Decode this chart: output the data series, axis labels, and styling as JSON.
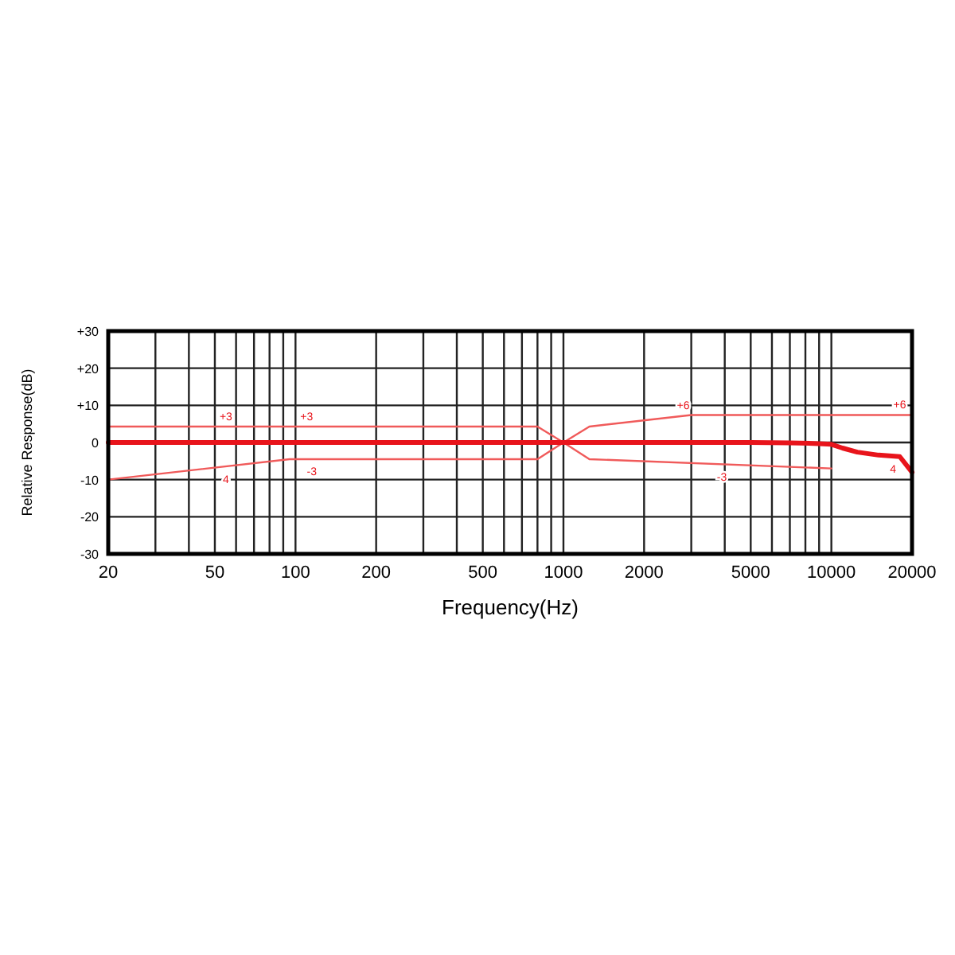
{
  "chart_data": {
    "type": "line",
    "xlabel": "Frequency(Hz)",
    "ylabel": "Relative Response(dB)",
    "log": "x",
    "grid": true,
    "marker": "none",
    "line_style": "solid",
    "xlim": [
      20,
      20000
    ],
    "ylim": [
      -30,
      30
    ],
    "xticks": [
      20,
      {
        "value": 30,
        "label": null
      },
      {
        "value": 40,
        "label": null
      },
      50,
      {
        "value": 60,
        "label": null
      },
      {
        "value": 70,
        "label": null
      },
      {
        "value": 80,
        "label": null
      },
      {
        "value": 90,
        "label": null
      },
      100,
      200,
      {
        "value": 300,
        "label": null
      },
      {
        "value": 400,
        "label": null
      },
      500,
      {
        "value": 600,
        "label": null
      },
      {
        "value": 700,
        "label": null
      },
      {
        "value": 800,
        "label": null
      },
      {
        "value": 900,
        "label": null
      },
      1000,
      2000,
      {
        "value": 3000,
        "label": null
      },
      {
        "value": 4000,
        "label": null
      },
      5000,
      {
        "value": 6000,
        "label": null
      },
      {
        "value": 7000,
        "label": null
      },
      {
        "value": 8000,
        "label": null
      },
      {
        "value": 9000,
        "label": null
      },
      10000,
      20000
    ],
    "yticks": [
      {
        "value": 30,
        "label": "+30"
      },
      {
        "value": 20,
        "label": "+20"
      },
      {
        "value": 10,
        "label": "+10"
      },
      0,
      -10,
      -20,
      -30
    ],
    "series": [
      {
        "color": "#f05a5a",
        "x": [
          20,
          800,
          1000,
          1250,
          3000,
          20000
        ],
        "values": [
          4.3,
          4.3,
          0,
          4.3,
          7.4,
          7.4
        ]
      },
      {
        "color": "#f05a5a",
        "x": [
          20,
          95,
          800,
          1000,
          1250,
          10000
        ],
        "values": [
          -10,
          -4.5,
          -4.5,
          0,
          -4.5,
          -7
        ]
      },
      {
        "color": "#e8141b",
        "x": [
          20,
          1000,
          5000,
          7000,
          9000,
          10000,
          11000,
          12500,
          15000,
          18000,
          20000
        ],
        "values": [
          0,
          0,
          0,
          -0.1,
          -0.3,
          -0.5,
          -1.5,
          -2.6,
          -3.4,
          -3.8,
          -8
        ]
      }
    ],
    "annotations": [
      {
        "text": "+3",
        "x": 55,
        "y": 4.3
      },
      {
        "text": "+3",
        "x": 110,
        "y": 4.3
      },
      {
        "text": "-3",
        "x": 115,
        "y": -4.5
      },
      {
        "text": "4",
        "x": 55,
        "y": -6.6
      },
      {
        "text": "+6",
        "x": 2800,
        "y": 7.2
      },
      {
        "text": "+6",
        "x": 18000,
        "y": 7.4
      },
      {
        "text": "-3",
        "x": 3900,
        "y": -5.9
      },
      {
        "text": "4",
        "x": 17000,
        "y": -3.8
      }
    ]
  }
}
